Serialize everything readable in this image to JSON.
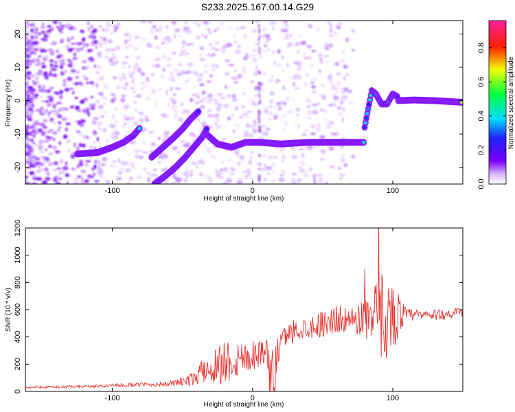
{
  "title": "S233.2025.167.00.14.G29",
  "colors": {
    "snr_line": "#e8302c",
    "axes": "#000000"
  },
  "chart_data": [
    {
      "type": "heatmap",
      "xlabel": "Height of straight line (km)",
      "ylabel": "Frequency (Hz)",
      "xlim": [
        -162,
        150
      ],
      "ylim": [
        -25,
        24
      ],
      "xticks": [
        -100,
        0,
        100
      ],
      "yticks": [
        -20,
        -10,
        0,
        10,
        20
      ],
      "colorbar": {
        "label": "Normalized spectral amplitude",
        "range": [
          0,
          0.96
        ],
        "ticks": [
          0.0,
          0.2,
          0.4,
          0.6,
          0.8
        ],
        "colormap": "rainbow (purple-blue-cyan-green-yellow-red-magenta)"
      },
      "ridges": [
        {
          "x": [
            -125,
            -110,
            -100,
            -92,
            -85,
            -80
          ],
          "y": [
            -16,
            -15.5,
            -14,
            -12.5,
            -10.5,
            -8
          ]
        },
        {
          "x": [
            -72,
            -64,
            -56,
            -50,
            -44,
            -38
          ],
          "y": [
            -17,
            -14,
            -11,
            -8.5,
            -5.5,
            -3
          ]
        },
        {
          "x": [
            -70,
            -62,
            -55,
            -48,
            -42,
            -36,
            -32
          ],
          "y": [
            -25,
            -22.5,
            -20,
            -17,
            -14,
            -11,
            -8
          ]
        },
        {
          "x": [
            -33,
            -25,
            -15,
            -5,
            5,
            20,
            40,
            60,
            80
          ],
          "y": [
            -10,
            -13,
            -14,
            -12.5,
            -12.5,
            -13,
            -12.5,
            -12.5,
            -12.5
          ]
        },
        {
          "x": [
            80,
            85,
            88,
            92,
            96,
            100,
            104
          ],
          "y": [
            -8,
            3,
            2,
            -1,
            -1,
            2,
            1
          ]
        },
        {
          "x": [
            104,
            115,
            130,
            150
          ],
          "y": [
            0,
            0.2,
            0,
            -0.5
          ]
        }
      ]
    },
    {
      "type": "line",
      "name": "",
      "xlabel": "Height of straight line (km)",
      "ylabel": "SNR (10 * v/v)",
      "xlim": [
        -162,
        150
      ],
      "ylim": [
        0,
        1200
      ],
      "xticks": [
        -100,
        0,
        100
      ],
      "yticks": [
        0,
        200,
        400,
        600,
        800,
        1000,
        1200
      ],
      "envelope": {
        "x": [
          -162,
          -120,
          -80,
          -60,
          -45,
          -35,
          -20,
          -10,
          0,
          10,
          15,
          20,
          25,
          30,
          40,
          50,
          60,
          70,
          78,
          82,
          88,
          92,
          96,
          100,
          105,
          110,
          130,
          150
        ],
        "center": [
          30,
          35,
          50,
          55,
          80,
          150,
          220,
          240,
          270,
          300,
          150,
          370,
          420,
          450,
          470,
          500,
          530,
          520,
          540,
          550,
          500,
          560,
          540,
          550,
          560,
          560,
          560,
          580
        ],
        "spread": [
          8,
          10,
          15,
          20,
          40,
          90,
          180,
          140,
          120,
          90,
          200,
          80,
          70,
          90,
          80,
          100,
          110,
          80,
          150,
          180,
          300,
          350,
          300,
          250,
          150,
          50,
          40,
          40
        ]
      }
    }
  ]
}
